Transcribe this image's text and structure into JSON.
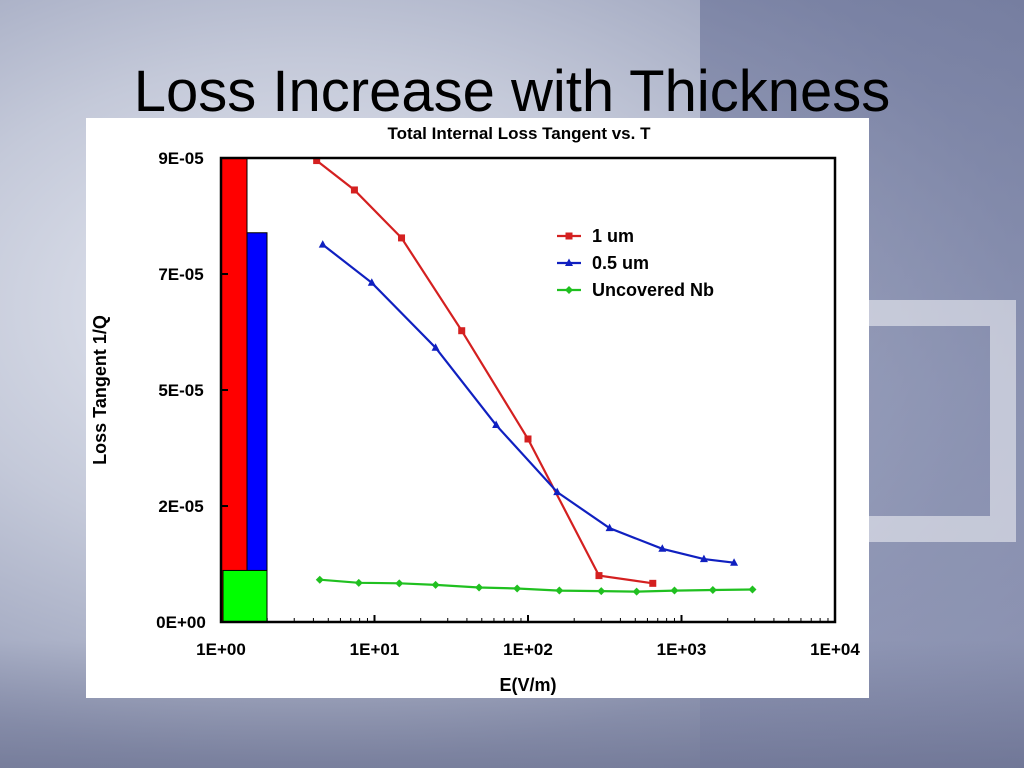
{
  "slide": {
    "title": "Loss Increase with Thickness"
  },
  "chart_data": {
    "type": "line",
    "title": "Total Internal Loss Tangent vs. T",
    "xlabel": "E(V/m)",
    "ylabel": "Loss Tangent 1/Q",
    "x_scale": "log",
    "xlim": [
      1,
      10000
    ],
    "ylim": [
      0,
      9e-05
    ],
    "x_ticks": [
      "1E+00",
      "1E+01",
      "1E+02",
      "1E+03",
      "1E+04"
    ],
    "y_ticks": [
      "0E+00",
      "2E-05",
      "5E-05",
      "7E-05",
      "9E-05"
    ],
    "grid": false,
    "legend_position": "top-right",
    "series": [
      {
        "name": "1 um",
        "color": "#d42020",
        "marker": "square",
        "x": [
          4.2,
          7.4,
          15,
          37,
          100,
          290,
          650
        ],
        "y": [
          8.95e-05,
          8.38e-05,
          7.45e-05,
          5.65e-05,
          3.55e-05,
          9e-06,
          7.5e-06
        ]
      },
      {
        "name": "0.5 um",
        "color": "#1020c0",
        "marker": "triangle",
        "x": [
          4.6,
          9.6,
          25,
          62,
          155,
          340,
          750,
          1400,
          2200
        ],
        "y": [
          7.32e-05,
          6.58e-05,
          5.32e-05,
          3.82e-05,
          2.52e-05,
          1.82e-05,
          1.42e-05,
          1.22e-05,
          1.15e-05
        ]
      },
      {
        "name": "Uncovered Nb",
        "color": "#20c020",
        "marker": "diamond",
        "x": [
          4.4,
          7.9,
          14.5,
          25,
          48,
          85,
          160,
          300,
          510,
          900,
          1600,
          2900
        ],
        "y": [
          8.2e-06,
          7.6e-06,
          7.5e-06,
          7.2e-06,
          6.7e-06,
          6.5e-06,
          6.1e-06,
          6e-06,
          5.9e-06,
          6.1e-06,
          6.2e-06,
          6.3e-06
        ]
      }
    ],
    "bars": [
      {
        "series": "1 um",
        "color": "#ff0000",
        "value": 9e-05
      },
      {
        "series": "0.5 um",
        "color": "#0000ff",
        "value": 7.55e-05
      },
      {
        "series": "Uncovered Nb",
        "color": "#00ff00",
        "value": 1e-05
      }
    ]
  }
}
